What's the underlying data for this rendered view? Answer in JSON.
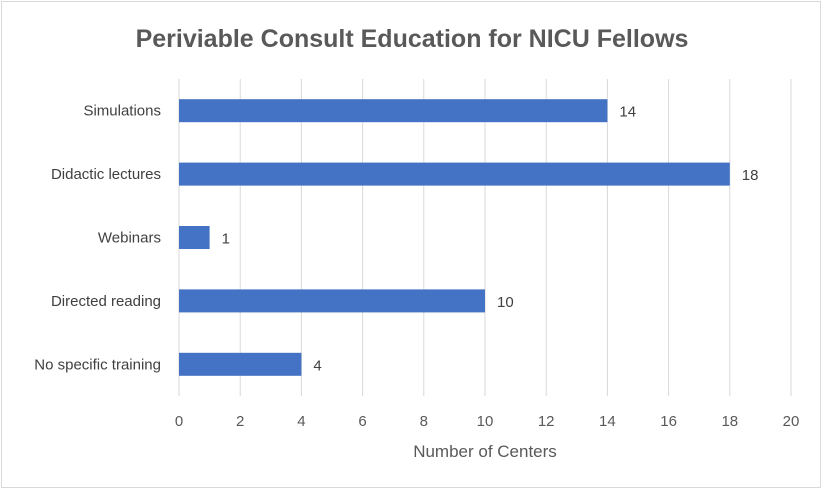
{
  "chart_data": {
    "type": "bar",
    "orientation": "horizontal",
    "title": "Periviable Consult Education for NICU Fellows",
    "xlabel": "Number of Centers",
    "ylabel": "",
    "categories": [
      "Simulations",
      "Didactic lectures",
      "Webinars",
      "Directed reading",
      "No specific training"
    ],
    "values": [
      14,
      18,
      1,
      10,
      4
    ],
    "xlim": [
      0,
      20
    ],
    "xticks": [
      0,
      2,
      4,
      6,
      8,
      10,
      12,
      14,
      16,
      18,
      20
    ],
    "grid": true,
    "legend": "none",
    "bar_color": "#4472c4"
  }
}
